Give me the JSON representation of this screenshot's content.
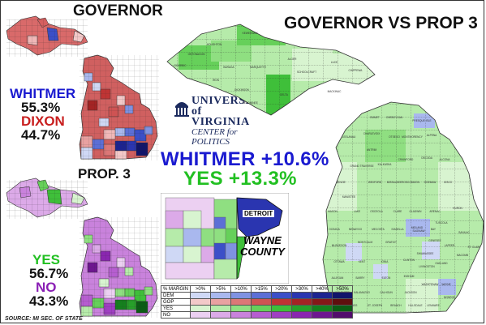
{
  "titles": {
    "governor": "GOVERNOR",
    "governor_vs_prop3": "GOVERNOR VS PROP 3",
    "prop3": "PROP. 3"
  },
  "governor_results": {
    "dem_name": "WHITMER",
    "dem_pct": "55.3%",
    "gop_name": "DIXON",
    "gop_pct": "44.7%"
  },
  "prop3_results": {
    "yes_name": "YES",
    "yes_pct": "56.7%",
    "no_name": "NO",
    "no_pct": "43.3%"
  },
  "headline": {
    "whitmer_margin": "WHITMER +10.6%",
    "yes_margin": "YES +13.3%"
  },
  "logo": {
    "line1": "UNIVERSITY",
    "line2": "of VIRGINIA",
    "line3": "CENTER for POLITICS"
  },
  "inset": {
    "title_line1": "WAYNE",
    "title_line2": "COUNTY",
    "city_label": "DETROIT"
  },
  "source": "SOURCE: MI SEC. OF STATE",
  "legend": {
    "header": "% MARGIN",
    "bins": [
      ">0%",
      ">5%",
      ">10%",
      ">15%",
      ">20%",
      ">30%",
      ">40%",
      ">50%"
    ],
    "rows": [
      {
        "label": "DEM",
        "colors": [
          "#cfd8f5",
          "#a9b8ee",
          "#7f92e2",
          "#5c6fd6",
          "#3c4fc8",
          "#2a35b0",
          "#1c2390",
          "#11156a"
        ]
      },
      {
        "label": "GOP",
        "colors": [
          "#f3c9c9",
          "#e9a1a1",
          "#dc7777",
          "#cf5353",
          "#bf3434",
          "#a42424",
          "#851818",
          "#5f0e0e"
        ]
      },
      {
        "label": "YES",
        "colors": [
          "#d8f4d0",
          "#b6ebaa",
          "#8fdf81",
          "#66d05a",
          "#3fbf3a",
          "#27a02a",
          "#15801e",
          "#0b5c14"
        ]
      },
      {
        "label": "NO",
        "colors": [
          "#ecd0f2",
          "#dcaae8",
          "#c982dc",
          "#b65ed0",
          "#a03fc2",
          "#8a26b0",
          "#6e1690",
          "#520c6c"
        ]
      }
    ]
  },
  "county_labels": [
    "GOGEBIC",
    "ONTONAGON",
    "HOUGHTON",
    "KEWEENAW",
    "BARAGA",
    "IRON",
    "MARQUETTE",
    "ALGER",
    "DICKINSON",
    "MENOMINEE",
    "DELTA",
    "SCHOOLCRAFT",
    "LUCE",
    "CHIPPEWA",
    "MACKINAC",
    "EMMET",
    "CHEBOYGAN",
    "PRESQUE ISLE",
    "CHARLEVOIX",
    "OTSEGO",
    "MONTMORENCY",
    "ALPENA",
    "ANTRIM",
    "LEELANAU",
    "GRAND TRAVERSE",
    "KALKASKA",
    "CRAWFORD",
    "OSCODA",
    "ALCONA",
    "BENZIE",
    "MANISTEE",
    "WEXFORD",
    "MISSAUKEE",
    "ROSCOMMON",
    "OGEMAW",
    "IOSCO",
    "MASON",
    "LAKE",
    "OSCEOLA",
    "CLARE",
    "GLADWIN",
    "ARENAC",
    "OCEANA",
    "NEWAYGO",
    "MECOSTA",
    "ISABELLA",
    "MIDLAND",
    "BAY",
    "HURON",
    "MUSKEGON",
    "MONTCALM",
    "GRATIOT",
    "SAGINAW",
    "TUSCOLA",
    "SANILAC",
    "OTTAWA",
    "KENT",
    "IONIA",
    "CLINTON",
    "SHIAWASSEE",
    "GENESEE",
    "LAPEER",
    "ST. CLAIR",
    "ALLEGAN",
    "BARRY",
    "EATON",
    "INGHAM",
    "LIVINGSTON",
    "OAKLAND",
    "MACOMB",
    "VAN BUREN",
    "KALAMAZOO",
    "CALHOUN",
    "JACKSON",
    "WASHTENAW",
    "WAYNE",
    "BERRIEN",
    "CASS",
    "ST. JOSEPH",
    "BRANCH",
    "HILLSDALE",
    "LENAWEE",
    "MONROE"
  ]
}
